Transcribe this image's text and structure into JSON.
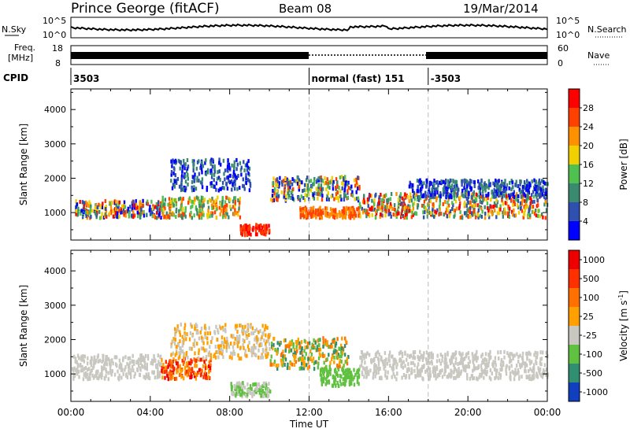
{
  "header": {
    "station": "Prince George (fitACF)",
    "beam": "Beam 08",
    "date": "19/Mar/2014"
  },
  "top_panels": {
    "nsky_label": "N.Sky",
    "nsearch_label": "N.Search",
    "freq_label_line1": "Freq.",
    "freq_label_line2": "[MHz]",
    "nave_label": "Nave",
    "cpid_label": "CPID",
    "noise_ticks_left": [
      "10^5",
      "10^0"
    ],
    "noise_ticks_right": [
      "10^5",
      "10^0"
    ],
    "freq_ticks": [
      "18",
      "8"
    ],
    "nave_ticks": [
      "60",
      "0"
    ]
  },
  "cpid_segments": [
    {
      "label": "3503",
      "start": 0,
      "end": 12
    },
    {
      "label": "normal (fast) 151",
      "start": 12,
      "end": 18
    },
    {
      "label": "-3503",
      "start": 18,
      "end": 24
    }
  ],
  "chart_data": [
    {
      "type": "heatmap",
      "title": "",
      "xlabel": "",
      "ylabel": "Slant Range [km]",
      "xlim": [
        0,
        24
      ],
      "ylim": [
        200,
        4600
      ],
      "yticks": [
        "4000",
        "3000",
        "2000",
        "1000"
      ],
      "colorbar": {
        "label": "Power [dB]",
        "ticks": [
          "28",
          "24",
          "20",
          "16",
          "12",
          "8",
          "4"
        ],
        "colors": [
          "#0000ff",
          "#3050b0",
          "#3a8a70",
          "#50c050",
          "#f0d000",
          "#ff9000",
          "#ff4000",
          "#ff0000"
        ]
      }
    },
    {
      "type": "heatmap",
      "title": "",
      "xlabel": "Time UT",
      "ylabel": "Slant Range [km]",
      "xlim": [
        0,
        24
      ],
      "ylim": [
        200,
        4600
      ],
      "yticks": [
        "4000",
        "3000",
        "2000",
        "1000"
      ],
      "xticks": [
        "00:00",
        "04:00",
        "08:00",
        "12:00",
        "16:00",
        "20:00",
        "00:00"
      ],
      "colorbar": {
        "label": "Velocity [m s^-1]",
        "ticks": [
          "1000",
          "500",
          "100",
          "25",
          "-25",
          "-100",
          "-500",
          "-1000"
        ],
        "colors": [
          "#1040c0",
          "#2f8f70",
          "#60c040",
          "#c8c8c0",
          "#ffa000",
          "#ff7000",
          "#ff3000",
          "#ee0000"
        ]
      }
    }
  ]
}
